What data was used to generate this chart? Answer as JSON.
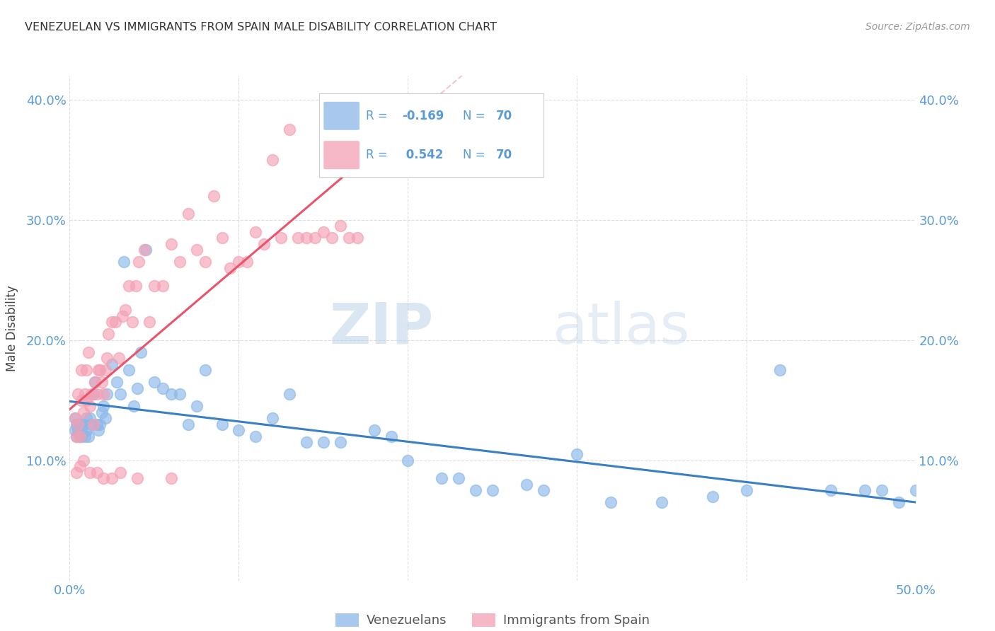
{
  "title": "VENEZUELAN VS IMMIGRANTS FROM SPAIN MALE DISABILITY CORRELATION CHART",
  "source": "Source: ZipAtlas.com",
  "ylabel": "Male Disability",
  "xlim": [
    0.0,
    0.5
  ],
  "ylim": [
    0.0,
    0.42
  ],
  "grid_color": "#dddddd",
  "background_color": "#ffffff",
  "venezuelan_color": "#8bb8e8",
  "spain_color": "#f4a0b4",
  "venezuelan_R": -0.169,
  "venezuelan_N": 70,
  "spain_R": 0.542,
  "spain_N": 70,
  "watermark_zip": "ZIP",
  "watermark_atlas": "atlas",
  "venezuelan_x": [
    0.003,
    0.003,
    0.004,
    0.004,
    0.005,
    0.005,
    0.006,
    0.006,
    0.007,
    0.007,
    0.008,
    0.009,
    0.01,
    0.01,
    0.011,
    0.012,
    0.013,
    0.014,
    0.015,
    0.016,
    0.017,
    0.018,
    0.019,
    0.02,
    0.021,
    0.022,
    0.025,
    0.028,
    0.03,
    0.032,
    0.035,
    0.038,
    0.04,
    0.042,
    0.045,
    0.05,
    0.055,
    0.06,
    0.065,
    0.07,
    0.075,
    0.08,
    0.09,
    0.1,
    0.11,
    0.12,
    0.13,
    0.14,
    0.15,
    0.16,
    0.18,
    0.19,
    0.2,
    0.22,
    0.23,
    0.24,
    0.25,
    0.27,
    0.28,
    0.3,
    0.32,
    0.35,
    0.38,
    0.4,
    0.42,
    0.45,
    0.47,
    0.48,
    0.49,
    0.5
  ],
  "venezuelan_y": [
    0.135,
    0.125,
    0.13,
    0.12,
    0.13,
    0.125,
    0.12,
    0.13,
    0.125,
    0.12,
    0.13,
    0.12,
    0.135,
    0.125,
    0.12,
    0.135,
    0.13,
    0.155,
    0.165,
    0.13,
    0.125,
    0.13,
    0.14,
    0.145,
    0.135,
    0.155,
    0.18,
    0.165,
    0.155,
    0.265,
    0.175,
    0.145,
    0.16,
    0.19,
    0.275,
    0.165,
    0.16,
    0.155,
    0.155,
    0.13,
    0.145,
    0.175,
    0.13,
    0.125,
    0.12,
    0.135,
    0.155,
    0.115,
    0.115,
    0.115,
    0.125,
    0.12,
    0.1,
    0.085,
    0.085,
    0.075,
    0.075,
    0.08,
    0.075,
    0.105,
    0.065,
    0.065,
    0.07,
    0.075,
    0.175,
    0.075,
    0.075,
    0.075,
    0.065,
    0.075
  ],
  "spain_x": [
    0.003,
    0.004,
    0.005,
    0.005,
    0.006,
    0.007,
    0.007,
    0.008,
    0.009,
    0.01,
    0.01,
    0.011,
    0.012,
    0.013,
    0.014,
    0.015,
    0.016,
    0.017,
    0.018,
    0.019,
    0.02,
    0.021,
    0.022,
    0.023,
    0.025,
    0.027,
    0.029,
    0.031,
    0.033,
    0.035,
    0.037,
    0.039,
    0.041,
    0.044,
    0.047,
    0.05,
    0.055,
    0.06,
    0.065,
    0.07,
    0.075,
    0.08,
    0.085,
    0.09,
    0.095,
    0.1,
    0.105,
    0.11,
    0.115,
    0.12,
    0.125,
    0.13,
    0.135,
    0.14,
    0.145,
    0.15,
    0.155,
    0.16,
    0.165,
    0.17,
    0.004,
    0.006,
    0.008,
    0.012,
    0.016,
    0.02,
    0.025,
    0.03,
    0.04,
    0.06
  ],
  "spain_y": [
    0.135,
    0.12,
    0.155,
    0.13,
    0.12,
    0.175,
    0.15,
    0.14,
    0.155,
    0.15,
    0.175,
    0.19,
    0.145,
    0.155,
    0.13,
    0.165,
    0.155,
    0.175,
    0.175,
    0.165,
    0.155,
    0.175,
    0.185,
    0.205,
    0.215,
    0.215,
    0.185,
    0.22,
    0.225,
    0.245,
    0.215,
    0.245,
    0.265,
    0.275,
    0.215,
    0.245,
    0.245,
    0.28,
    0.265,
    0.305,
    0.275,
    0.265,
    0.32,
    0.285,
    0.26,
    0.265,
    0.265,
    0.29,
    0.28,
    0.35,
    0.285,
    0.375,
    0.285,
    0.285,
    0.285,
    0.29,
    0.285,
    0.295,
    0.285,
    0.285,
    0.09,
    0.095,
    0.1,
    0.09,
    0.09,
    0.085,
    0.085,
    0.09,
    0.085,
    0.085
  ]
}
